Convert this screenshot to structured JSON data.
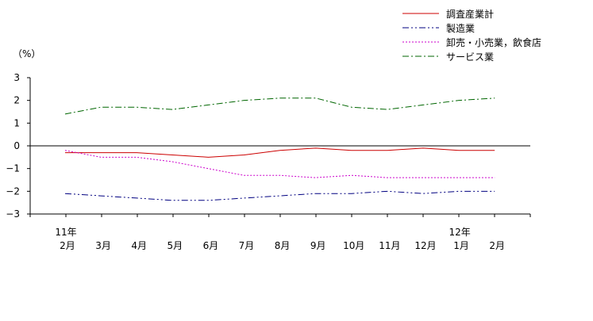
{
  "chart_data": {
    "type": "line",
    "unit_label": "（%）",
    "ylim": [
      -3,
      3
    ],
    "yticks": [
      "3",
      "2",
      "1",
      "0",
      "−1",
      "−2",
      "−3"
    ],
    "ytick_values": [
      3,
      2,
      1,
      0,
      -1,
      -2,
      -3
    ],
    "categories": [
      "2月",
      "3月",
      "4月",
      "5月",
      "6月",
      "7月",
      "8月",
      "9月",
      "10月",
      "11月",
      "12月",
      "1月",
      "2月"
    ],
    "year_labels": [
      {
        "index": 0,
        "text": "11年"
      },
      {
        "index": 11,
        "text": "12年"
      }
    ],
    "legend_position": "top-right",
    "grid": false,
    "series": [
      {
        "name": "調査産業計",
        "color": "#cc0000",
        "dash": "solid",
        "values": [
          -0.3,
          -0.3,
          -0.3,
          -0.4,
          -0.5,
          -0.4,
          -0.2,
          -0.1,
          -0.2,
          -0.2,
          -0.1,
          -0.2,
          -0.2
        ]
      },
      {
        "name": "製造業",
        "color": "#000080",
        "dash": "dashdotdot",
        "values": [
          -2.1,
          -2.2,
          -2.3,
          -2.4,
          -2.4,
          -2.3,
          -2.2,
          -2.1,
          -2.1,
          -2.0,
          -2.1,
          -2.0,
          -2.0
        ]
      },
      {
        "name": "卸売・小売業，飲食店",
        "color": "#cc00cc",
        "dash": "dotted",
        "values": [
          -0.2,
          -0.5,
          -0.5,
          -0.7,
          -1.0,
          -1.3,
          -1.3,
          -1.4,
          -1.3,
          -1.4,
          -1.4,
          -1.4,
          -1.4
        ]
      },
      {
        "name": "サービス業",
        "color": "#006600",
        "dash": "dashdot",
        "values": [
          1.4,
          1.7,
          1.7,
          1.6,
          1.8,
          2.0,
          2.1,
          2.1,
          1.7,
          1.6,
          1.8,
          2.0,
          2.1
        ]
      }
    ]
  }
}
